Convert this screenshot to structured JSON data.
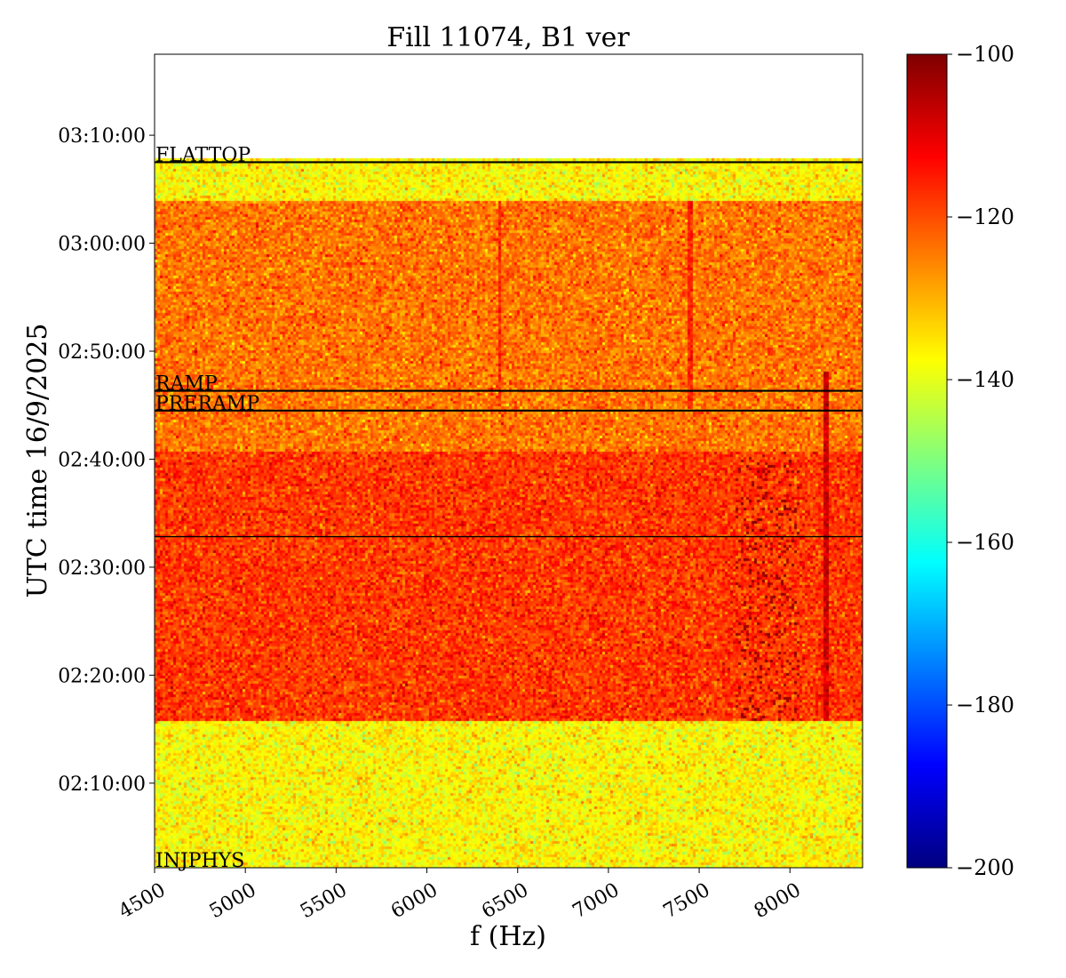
{
  "chart_data": {
    "type": "heatmap",
    "title": "Fill 11074, B1 ver",
    "xlabel": "f (Hz)",
    "ylabel": "UTC time 16/9/2025",
    "xlim": [
      4500,
      8400
    ],
    "x_ticks": [
      4500,
      5000,
      5500,
      6000,
      6500,
      7000,
      7500,
      8000
    ],
    "x_tick_labels": [
      "4500",
      "5000",
      "5500",
      "6000",
      "6500",
      "7000",
      "7500",
      "8000"
    ],
    "ylim": [
      "02:02:10",
      "03:17:30"
    ],
    "y_ticks": [
      "02:10:00",
      "02:20:00",
      "02:30:00",
      "02:40:00",
      "02:50:00",
      "03:00:00",
      "03:10:00"
    ],
    "y_tick_labels": [
      "02:10:00",
      "02:20:00",
      "02:30:00",
      "02:40:00",
      "02:50:00",
      "03:00:00",
      "03:10:00"
    ],
    "data_end_time": "03:07:50",
    "colorbar": {
      "colormap": "jet",
      "min": -200,
      "max": -100,
      "ticks": [
        -100,
        -120,
        -140,
        -160,
        -180,
        -200
      ],
      "tick_labels": [
        "−100",
        "−120",
        "−140",
        "−160",
        "−180",
        "−200"
      ]
    },
    "time_bands": [
      {
        "start": "02:02:10",
        "end": "02:15:40",
        "mean_level": -137
      },
      {
        "start": "02:15:40",
        "end": "02:40:40",
        "mean_level": -118
      },
      {
        "start": "02:40:40",
        "end": "03:04:00",
        "mean_level": -124
      },
      {
        "start": "03:04:00",
        "end": "03:07:50",
        "mean_level": -137
      }
    ],
    "features": [
      {
        "description": "strong lines",
        "f_start": 7700,
        "f_end": 8050,
        "t_start": "02:15:40",
        "t_end": "02:40:40",
        "level": -103
      },
      {
        "description": "line",
        "f": 8200,
        "t_start": "02:15:40",
        "t_end": "02:48:00",
        "level": -108
      },
      {
        "description": "line",
        "f": 6400,
        "t_start": "02:45:00",
        "t_end": "03:04:00",
        "level": -116
      },
      {
        "description": "line",
        "f": 7450,
        "t_start": "02:45:00",
        "t_end": "03:04:00",
        "level": -116
      }
    ],
    "annotations": [
      {
        "label": "INJPHYS",
        "time": "02:02:10",
        "line": false
      },
      {
        "label": "PRERAMP",
        "time": "02:44:30",
        "line": true
      },
      {
        "label": "RAMP",
        "time": "02:46:20",
        "line": true
      },
      {
        "label": "FLATTOP",
        "time": "03:07:30",
        "line": true
      },
      {
        "label": "",
        "time": "02:32:50",
        "line": true
      }
    ]
  }
}
